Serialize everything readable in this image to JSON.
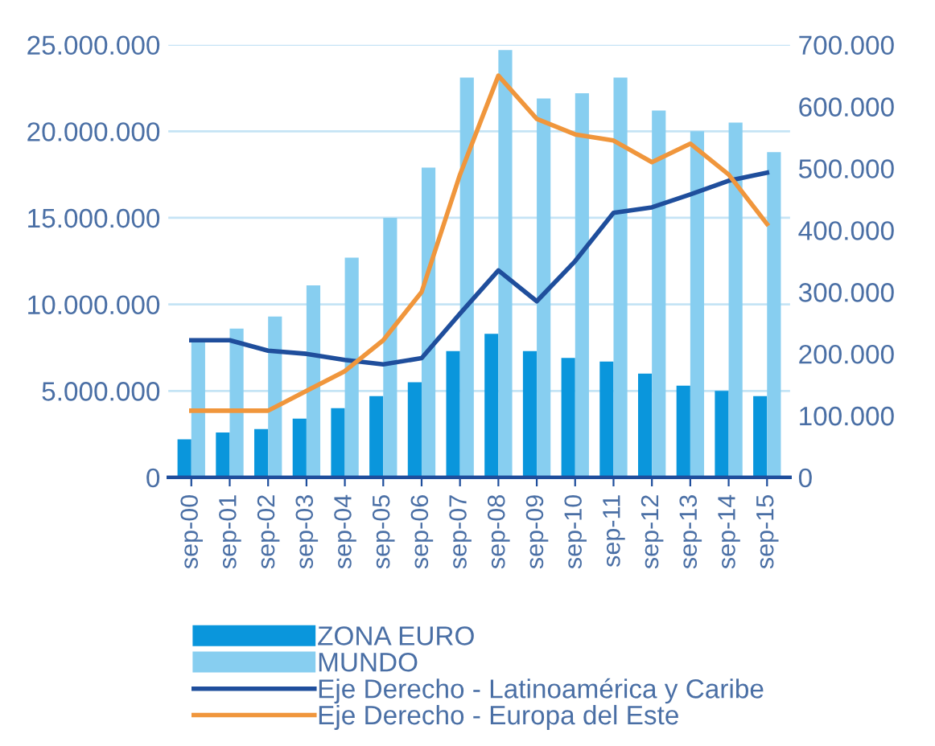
{
  "chart_data": {
    "type": "bar",
    "categories": [
      "sep-00",
      "sep-01",
      "sep-02",
      "sep-03",
      "sep-04",
      "sep-05",
      "sep-06",
      "sep-07",
      "sep-08",
      "sep-09",
      "sep-10",
      "sep-11",
      "sep-12",
      "sep-13",
      "sep-14",
      "sep-15"
    ],
    "series": [
      {
        "name": "ZONA EURO",
        "color": "#0a96dc",
        "values": [
          2200000,
          2600000,
          2800000,
          3400000,
          4000000,
          4700000,
          5500000,
          7300000,
          8300000,
          7300000,
          6900000,
          6700000,
          6000000,
          5300000,
          5000000,
          4700000
        ]
      },
      {
        "name": "MUNDO",
        "color": "#87cef0",
        "values": [
          7900000,
          8600000,
          9300000,
          11100000,
          12700000,
          15000000,
          17900000,
          23100000,
          24700000,
          21900000,
          22200000,
          23100000,
          21200000,
          20000000,
          20500000,
          18800000
        ]
      },
      {
        "name": "Eje Derecho - Latinoamérica y Caribe",
        "type": "line",
        "axis": "y2",
        "color": "#1f4e9c",
        "values": [
          222000,
          222000,
          205000,
          200000,
          190000,
          183000,
          193000,
          265000,
          335000,
          285000,
          350000,
          428000,
          437000,
          458000,
          480000,
          493000
        ]
      },
      {
        "name": "Eje Derecho - Europa del Este",
        "type": "line",
        "axis": "y2",
        "color": "#f0963c",
        "values": [
          108000,
          108000,
          108000,
          140000,
          172000,
          222000,
          300000,
          490000,
          650000,
          580000,
          555000,
          545000,
          510000,
          540000,
          490000,
          410000
        ]
      }
    ],
    "ylim": [
      0,
      25000000
    ],
    "yticks": [
      {
        "value": 0,
        "label": "0"
      },
      {
        "value": 5000000,
        "label": "5.000.000"
      },
      {
        "value": 10000000,
        "label": "10.000.000"
      },
      {
        "value": 15000000,
        "label": "15.000.000"
      },
      {
        "value": 20000000,
        "label": "20.000.000"
      },
      {
        "value": 25000000,
        "label": "25.000.000"
      }
    ],
    "y2lim": [
      0,
      700000
    ],
    "y2ticks": [
      {
        "value": 0,
        "label": "0"
      },
      {
        "value": 100000,
        "label": "100.000"
      },
      {
        "value": 200000,
        "label": "200.000"
      },
      {
        "value": 300000,
        "label": "300.000"
      },
      {
        "value": 400000,
        "label": "400.000"
      },
      {
        "value": 500000,
        "label": "500.000"
      },
      {
        "value": 600000,
        "label": "600.000"
      },
      {
        "value": 700000,
        "label": "700.000"
      }
    ],
    "grid": "y",
    "legend": "bottom",
    "marker": "none",
    "line_style": "solid"
  }
}
